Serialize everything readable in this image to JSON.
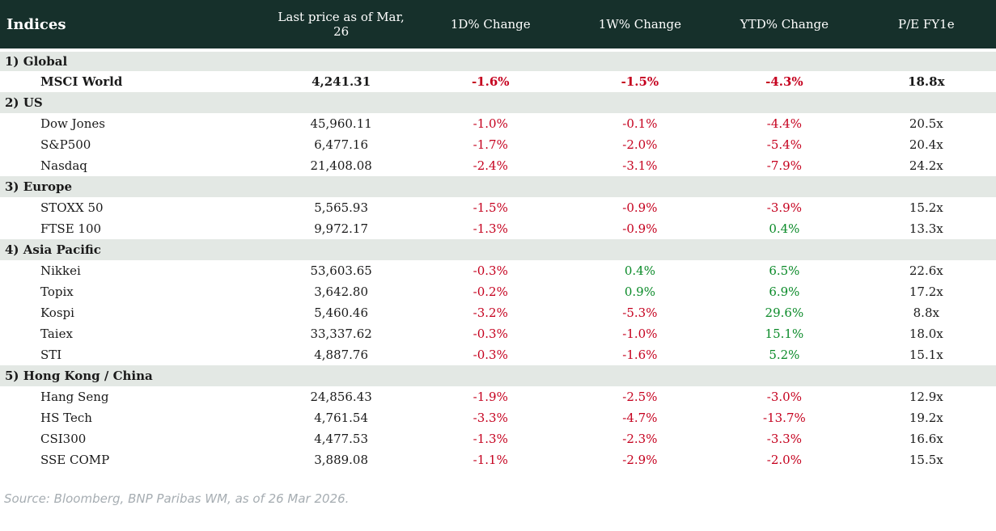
{
  "colors": {
    "header_bg": "#16302B",
    "section_bg": "#E3E8E4",
    "negative": "#C5001E",
    "positive": "#0A8A28",
    "footer_text": "#A6ADB2"
  },
  "header": {
    "columns": [
      "Indices",
      "Last price as of Mar, 26",
      "1D% Change",
      "1W% Change",
      "YTD% Change",
      "P/E FY1e"
    ]
  },
  "chart_data": {
    "type": "table",
    "title": "Indices",
    "columns": [
      "Indices",
      "Last price as of Mar, 26",
      "1D% Change",
      "1W% Change",
      "YTD% Change",
      "P/E FY1e"
    ],
    "sections": [
      {
        "label": "1) Global",
        "rows": [
          {
            "name": "MSCI World",
            "bold": true,
            "price": "4,241.31",
            "d1": "-1.6%",
            "w1": "-1.5%",
            "ytd": "-4.3%",
            "pe": "18.8x"
          }
        ]
      },
      {
        "label": "2) US",
        "rows": [
          {
            "name": "Dow Jones",
            "bold": false,
            "price": "45,960.11",
            "d1": "-1.0%",
            "w1": "-0.1%",
            "ytd": "-4.4%",
            "pe": "20.5x"
          },
          {
            "name": "S&P500",
            "bold": false,
            "price": "6,477.16",
            "d1": "-1.7%",
            "w1": "-2.0%",
            "ytd": "-5.4%",
            "pe": "20.4x"
          },
          {
            "name": "Nasdaq",
            "bold": false,
            "price": "21,408.08",
            "d1": "-2.4%",
            "w1": "-3.1%",
            "ytd": "-7.9%",
            "pe": "24.2x"
          }
        ]
      },
      {
        "label": "3) Europe",
        "rows": [
          {
            "name": "STOXX 50",
            "bold": false,
            "price": "5,565.93",
            "d1": "-1.5%",
            "w1": "-0.9%",
            "ytd": "-3.9%",
            "pe": "15.2x"
          },
          {
            "name": "FTSE 100",
            "bold": false,
            "price": "9,972.17",
            "d1": "-1.3%",
            "w1": "-0.9%",
            "ytd": "0.4%",
            "pe": "13.3x"
          }
        ]
      },
      {
        "label": "4) Asia Pacific",
        "rows": [
          {
            "name": "Nikkei",
            "bold": false,
            "price": "53,603.65",
            "d1": "-0.3%",
            "w1": "0.4%",
            "ytd": "6.5%",
            "pe": "22.6x"
          },
          {
            "name": "Topix",
            "bold": false,
            "price": "3,642.80",
            "d1": "-0.2%",
            "w1": "0.9%",
            "ytd": "6.9%",
            "pe": "17.2x"
          },
          {
            "name": "Kospi",
            "bold": false,
            "price": "5,460.46",
            "d1": "-3.2%",
            "w1": "-5.3%",
            "ytd": "29.6%",
            "pe": "8.8x"
          },
          {
            "name": "Taiex",
            "bold": false,
            "price": "33,337.62",
            "d1": "-0.3%",
            "w1": "-1.0%",
            "ytd": "15.1%",
            "pe": "18.0x"
          },
          {
            "name": "STI",
            "bold": false,
            "price": "4,887.76",
            "d1": "-0.3%",
            "w1": "-1.6%",
            "ytd": "5.2%",
            "pe": "15.1x"
          }
        ]
      },
      {
        "label": "5) Hong Kong / China",
        "rows": [
          {
            "name": "Hang Seng",
            "bold": false,
            "price": "24,856.43",
            "d1": "-1.9%",
            "w1": "-2.5%",
            "ytd": "-3.0%",
            "pe": "12.9x"
          },
          {
            "name": "HS Tech",
            "bold": false,
            "price": "4,761.54",
            "d1": "-3.3%",
            "w1": "-4.7%",
            "ytd": "-13.7%",
            "pe": "19.2x"
          },
          {
            "name": "CSI300",
            "bold": false,
            "price": "4,477.53",
            "d1": "-1.3%",
            "w1": "-2.3%",
            "ytd": "-3.3%",
            "pe": "16.6x"
          },
          {
            "name": "SSE COMP",
            "bold": false,
            "price": "3,889.08",
            "d1": "-1.1%",
            "w1": "-2.9%",
            "ytd": "-2.0%",
            "pe": "15.5x"
          }
        ]
      }
    ]
  },
  "footer": {
    "source": "Source: Bloomberg, BNP Paribas WM, as of 26 Mar 2026."
  }
}
